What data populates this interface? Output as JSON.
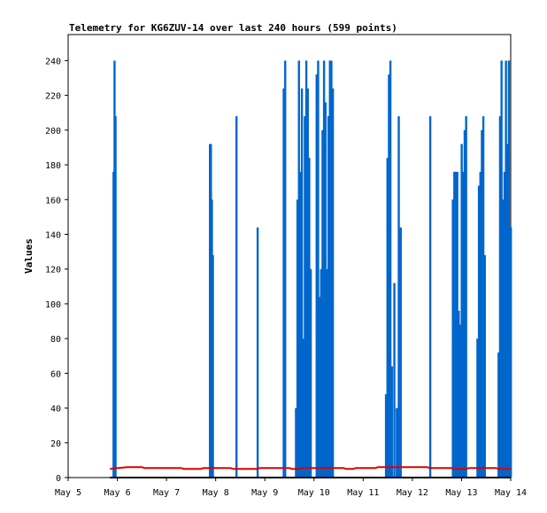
{
  "chart_data": {
    "type": "bar",
    "title": "Telemetry for KG6ZUV-14 over last 240 hours (599 points)",
    "ylabel": "Values",
    "xlabel": "",
    "ylim": [
      0,
      255
    ],
    "xlim": [
      "May 5",
      "May 14"
    ],
    "x_ticks": [
      "May 5",
      "May 6",
      "May 7",
      "May 8",
      "May 9",
      "May 10",
      "May 11",
      "May 12",
      "May 13",
      "May 14"
    ],
    "y_ticks": [
      0,
      20,
      40,
      60,
      80,
      100,
      120,
      140,
      160,
      180,
      200,
      220,
      240
    ],
    "grid": false,
    "series": [
      {
        "color": "#0066cc",
        "points": [
          {
            "x": 5.88,
            "y": 0
          },
          {
            "x": 5.92,
            "y": 176
          },
          {
            "x": 5.94,
            "y": 240
          },
          {
            "x": 5.96,
            "y": 208
          },
          {
            "x": 7.88,
            "y": 192
          },
          {
            "x": 7.9,
            "y": 192
          },
          {
            "x": 7.92,
            "y": 160
          },
          {
            "x": 7.94,
            "y": 128
          },
          {
            "x": 8.42,
            "y": 208
          },
          {
            "x": 8.85,
            "y": 144
          },
          {
            "x": 9.38,
            "y": 224
          },
          {
            "x": 9.41,
            "y": 240
          },
          {
            "x": 9.63,
            "y": 40
          },
          {
            "x": 9.66,
            "y": 160
          },
          {
            "x": 9.69,
            "y": 240
          },
          {
            "x": 9.72,
            "y": 176
          },
          {
            "x": 9.75,
            "y": 224
          },
          {
            "x": 9.78,
            "y": 80
          },
          {
            "x": 9.81,
            "y": 208
          },
          {
            "x": 9.84,
            "y": 240
          },
          {
            "x": 9.87,
            "y": 224
          },
          {
            "x": 9.9,
            "y": 184
          },
          {
            "x": 9.93,
            "y": 120
          },
          {
            "x": 10.05,
            "y": 232
          },
          {
            "x": 10.08,
            "y": 240
          },
          {
            "x": 10.11,
            "y": 104
          },
          {
            "x": 10.14,
            "y": 120
          },
          {
            "x": 10.17,
            "y": 200
          },
          {
            "x": 10.2,
            "y": 240
          },
          {
            "x": 10.23,
            "y": 216
          },
          {
            "x": 10.26,
            "y": 120
          },
          {
            "x": 10.29,
            "y": 208
          },
          {
            "x": 10.32,
            "y": 240
          },
          {
            "x": 10.35,
            "y": 240
          },
          {
            "x": 10.38,
            "y": 224
          },
          {
            "x": 11.46,
            "y": 48
          },
          {
            "x": 11.49,
            "y": 184
          },
          {
            "x": 11.52,
            "y": 232
          },
          {
            "x": 11.55,
            "y": 240
          },
          {
            "x": 11.58,
            "y": 64
          },
          {
            "x": 11.63,
            "y": 112
          },
          {
            "x": 11.68,
            "y": 40
          },
          {
            "x": 11.72,
            "y": 208
          },
          {
            "x": 11.76,
            "y": 144
          },
          {
            "x": 12.36,
            "y": 208
          },
          {
            "x": 12.82,
            "y": 160
          },
          {
            "x": 12.85,
            "y": 176
          },
          {
            "x": 12.88,
            "y": 176
          },
          {
            "x": 12.91,
            "y": 176
          },
          {
            "x": 12.94,
            "y": 96
          },
          {
            "x": 12.97,
            "y": 88
          },
          {
            "x": 13.0,
            "y": 192
          },
          {
            "x": 13.03,
            "y": 176
          },
          {
            "x": 13.06,
            "y": 200
          },
          {
            "x": 13.09,
            "y": 208
          },
          {
            "x": 13.32,
            "y": 80
          },
          {
            "x": 13.35,
            "y": 168
          },
          {
            "x": 13.38,
            "y": 176
          },
          {
            "x": 13.41,
            "y": 200
          },
          {
            "x": 13.44,
            "y": 208
          },
          {
            "x": 13.47,
            "y": 128
          },
          {
            "x": 13.75,
            "y": 72
          },
          {
            "x": 13.78,
            "y": 208
          },
          {
            "x": 13.81,
            "y": 240
          },
          {
            "x": 13.84,
            "y": 160
          },
          {
            "x": 13.87,
            "y": 176
          },
          {
            "x": 13.9,
            "y": 240
          },
          {
            "x": 13.93,
            "y": 192
          },
          {
            "x": 13.96,
            "y": 240
          },
          {
            "x": 13.98,
            "y": 120
          },
          {
            "x": 14.0,
            "y": 144
          }
        ]
      },
      {
        "color": "#dd0000",
        "line": [
          {
            "x": 5.85,
            "y": 5
          },
          {
            "x": 6.2,
            "y": 6
          },
          {
            "x": 6.5,
            "y": 6
          },
          {
            "x": 6.55,
            "y": 5.5
          },
          {
            "x": 7.3,
            "y": 5.5
          },
          {
            "x": 7.35,
            "y": 5
          },
          {
            "x": 7.7,
            "y": 5
          },
          {
            "x": 7.75,
            "y": 5.5
          },
          {
            "x": 8.3,
            "y": 5.5
          },
          {
            "x": 8.35,
            "y": 5
          },
          {
            "x": 8.85,
            "y": 5
          },
          {
            "x": 8.9,
            "y": 5.5
          },
          {
            "x": 9.5,
            "y": 5.5
          },
          {
            "x": 9.55,
            "y": 5
          },
          {
            "x": 9.7,
            "y": 5
          },
          {
            "x": 9.75,
            "y": 5.5
          },
          {
            "x": 10.6,
            "y": 5.5
          },
          {
            "x": 10.65,
            "y": 5
          },
          {
            "x": 10.8,
            "y": 5
          },
          {
            "x": 10.85,
            "y": 5.5
          },
          {
            "x": 11.25,
            "y": 5.5
          },
          {
            "x": 11.3,
            "y": 6
          },
          {
            "x": 12.3,
            "y": 6
          },
          {
            "x": 12.35,
            "y": 5.5
          },
          {
            "x": 12.8,
            "y": 5.5
          },
          {
            "x": 12.85,
            "y": 5
          },
          {
            "x": 13.1,
            "y": 5
          },
          {
            "x": 13.15,
            "y": 5.5
          },
          {
            "x": 13.7,
            "y": 5.5
          },
          {
            "x": 13.75,
            "y": 5
          },
          {
            "x": 14.0,
            "y": 5
          }
        ]
      },
      {
        "color": "#000000",
        "line": [
          {
            "x": 5.85,
            "y": 0
          },
          {
            "x": 14.0,
            "y": 0
          }
        ]
      }
    ]
  }
}
